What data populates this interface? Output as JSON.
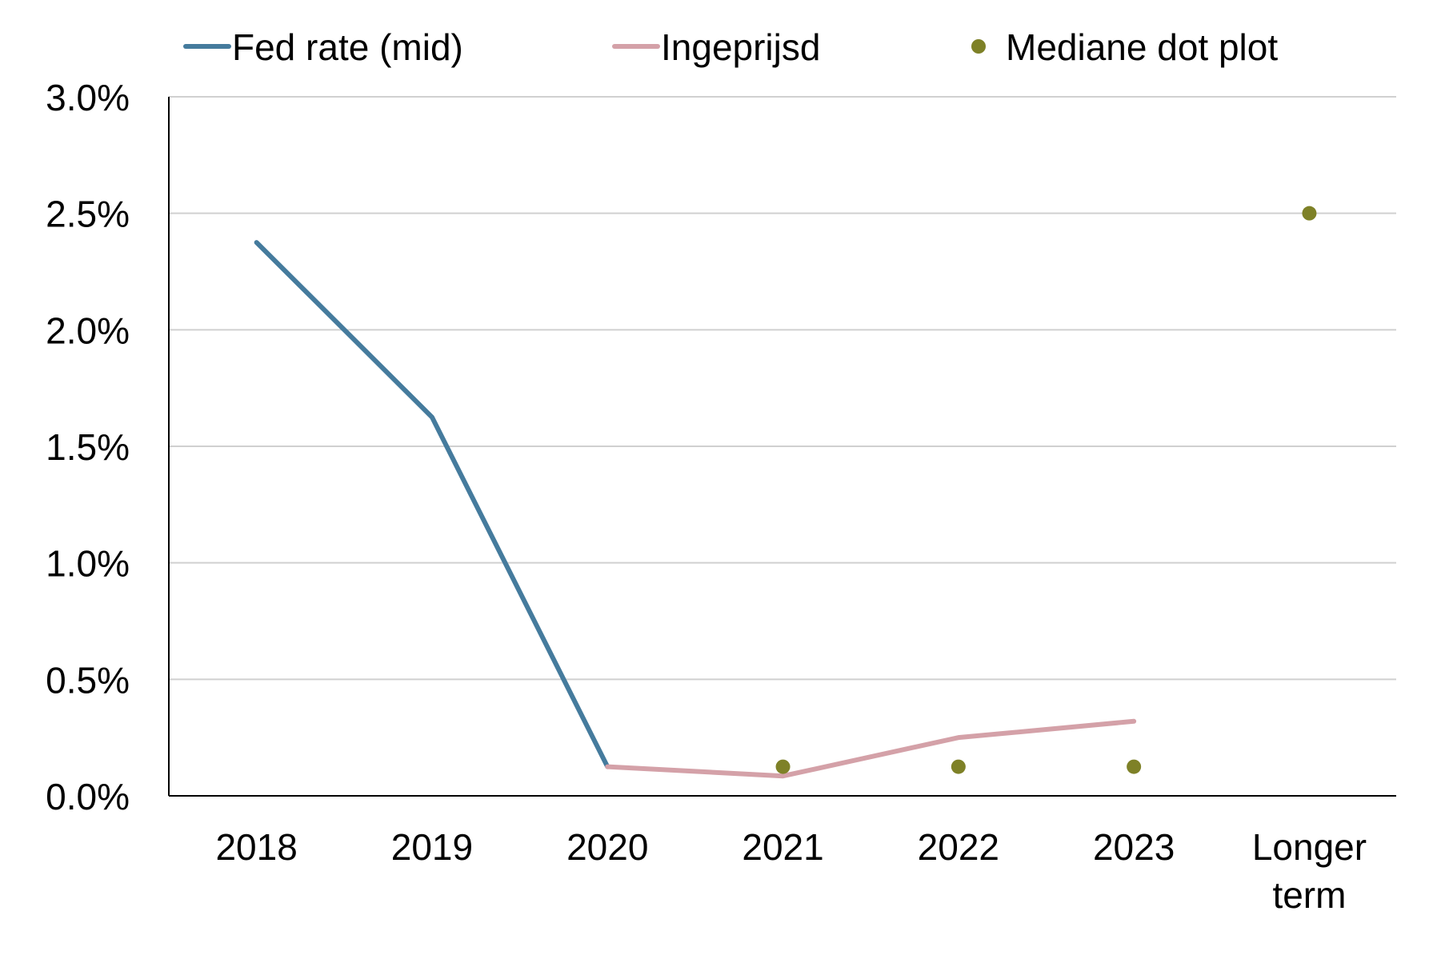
{
  "chart_data": {
    "type": "line",
    "categories": [
      "2018",
      "2019",
      "2020",
      "2021",
      "2022",
      "2023",
      "Longer term"
    ],
    "category_lines": [
      [
        "2018"
      ],
      [
        "2019"
      ],
      [
        "2020"
      ],
      [
        "2021"
      ],
      [
        "2022"
      ],
      [
        "2023"
      ],
      [
        "Longer",
        "term"
      ]
    ],
    "series": [
      {
        "name": "Fed rate (mid)",
        "kind": "line",
        "color": "#457b9d",
        "values": [
          2.375,
          1.625,
          0.125,
          null,
          null,
          null,
          null
        ]
      },
      {
        "name": "Ingeprijsd",
        "kind": "line",
        "color": "#d4a1a8",
        "values": [
          null,
          null,
          0.125,
          0.085,
          0.25,
          0.32,
          null
        ]
      },
      {
        "name": "Mediane dot plot",
        "kind": "scatter",
        "color": "#7e8127",
        "values": [
          null,
          null,
          null,
          0.125,
          0.125,
          0.125,
          2.5
        ]
      }
    ],
    "yticks": [
      "0.0%",
      "0.5%",
      "1.0%",
      "1.5%",
      "2.0%",
      "2.5%",
      "3.0%"
    ],
    "ylim": [
      0,
      3
    ],
    "grid": true,
    "legend": "top"
  }
}
